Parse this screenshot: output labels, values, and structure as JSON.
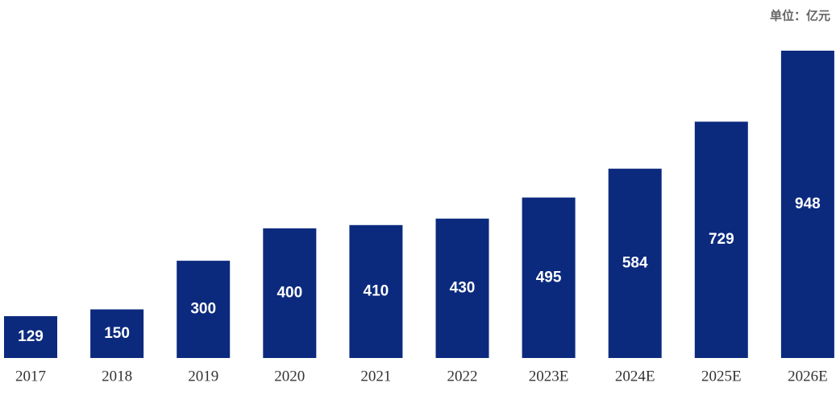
{
  "chart_data": {
    "type": "bar",
    "subtitle": "单位：亿元",
    "categories": [
      "2017",
      "2018",
      "2019",
      "2020",
      "2021",
      "2022",
      "2023E",
      "2024E",
      "2025E",
      "2026E"
    ],
    "values": [
      129,
      150,
      300,
      400,
      410,
      430,
      495,
      584,
      729,
      948
    ],
    "color": "#0b2a7e"
  }
}
